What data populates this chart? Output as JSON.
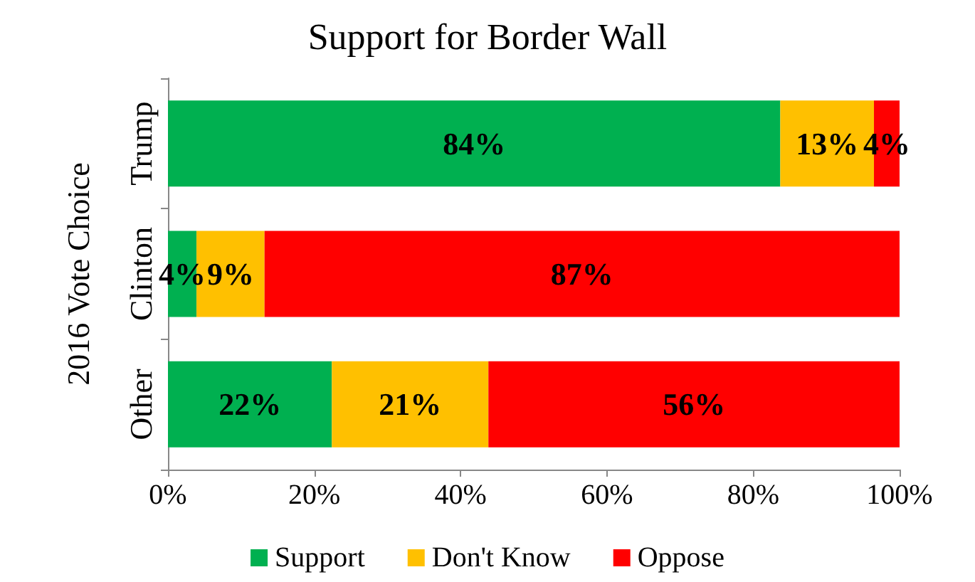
{
  "chart_data": {
    "type": "bar",
    "orientation": "horizontal",
    "stacked": true,
    "title": "Support for Border Wall",
    "ylabel": "2016 Vote Choice",
    "categories": [
      "Trump",
      "Clinton",
      "Other"
    ],
    "series": [
      {
        "name": "Support",
        "color": "#00b050",
        "values": [
          83.7,
          3.9,
          22.4
        ],
        "value_labels": [
          "84%",
          "4%",
          "22%"
        ]
      },
      {
        "name": "Don't Know",
        "color": "#ffc000",
        "values": [
          12.8,
          9.3,
          21.4
        ],
        "value_labels": [
          "13%",
          "9%",
          "21%"
        ]
      },
      {
        "name": "Oppose",
        "color": "#ff0000",
        "values": [
          3.5,
          86.8,
          56.2
        ],
        "value_labels": [
          "4%",
          "87%",
          "56%"
        ]
      }
    ],
    "xlim": [
      0,
      100
    ],
    "xticks": [
      {
        "value": 0,
        "label": "0%"
      },
      {
        "value": 20,
        "label": "20%"
      },
      {
        "value": 40,
        "label": "40%"
      },
      {
        "value": 60,
        "label": "60%"
      },
      {
        "value": 80,
        "label": "80%"
      },
      {
        "value": 100,
        "label": "100%"
      }
    ],
    "grid": false,
    "legend": "bottom"
  }
}
